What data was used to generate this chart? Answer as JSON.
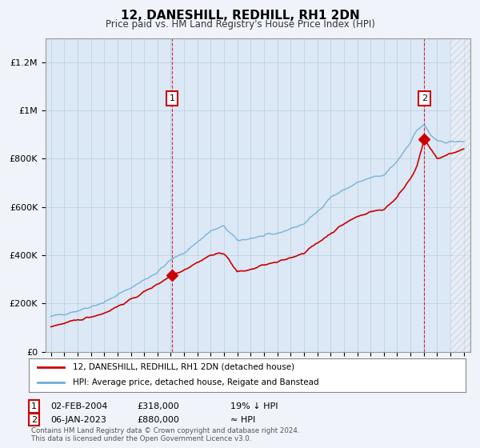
{
  "title": "12, DANESHILL, REDHILL, RH1 2DN",
  "subtitle": "Price paid vs. HM Land Registry's House Price Index (HPI)",
  "legend_line1": "12, DANESHILL, REDHILL, RH1 2DN (detached house)",
  "legend_line2": "HPI: Average price, detached house, Reigate and Banstead",
  "annotation1_date": "02-FEB-2004",
  "annotation1_price": "£318,000",
  "annotation1_hpi": "19% ↓ HPI",
  "annotation2_date": "06-JAN-2023",
  "annotation2_price": "£880,000",
  "annotation2_hpi": "≈ HPI",
  "footer": "Contains HM Land Registry data © Crown copyright and database right 2024.\nThis data is licensed under the Open Government Licence v3.0.",
  "hpi_color": "#6baed6",
  "price_color": "#cc0000",
  "background_color": "#f0f4fa",
  "plot_bg_color": "#dce8f5",
  "ylim": [
    0,
    1300000
  ],
  "yticks": [
    0,
    200000,
    400000,
    600000,
    800000,
    1000000,
    1200000
  ],
  "ytick_labels": [
    "£0",
    "£200K",
    "£400K",
    "£600K",
    "£800K",
    "£1M",
    "£1.2M"
  ],
  "sale1_x": 2004.09,
  "sale1_y": 318000,
  "sale2_x": 2023.03,
  "sale2_y": 880000,
  "xmin": 1995,
  "xmax": 2026
}
